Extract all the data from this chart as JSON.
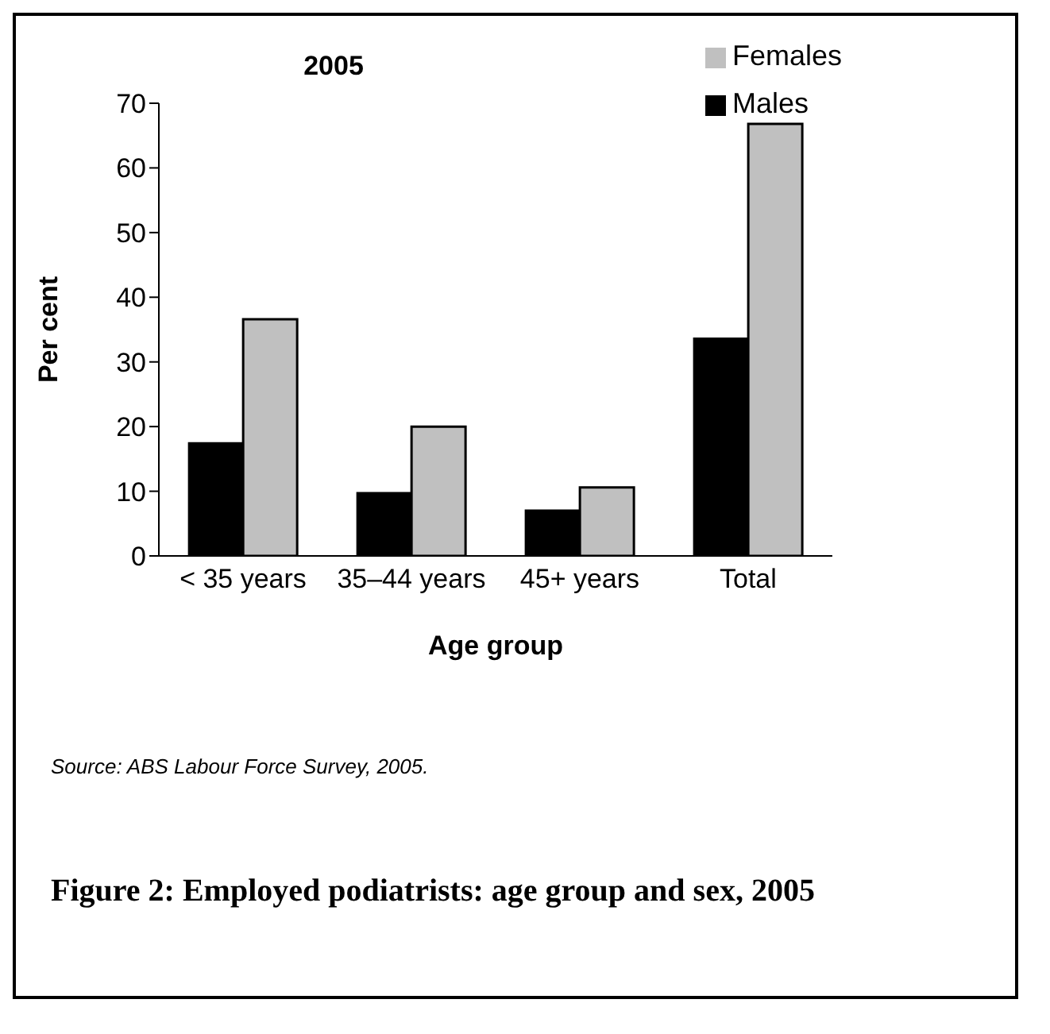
{
  "chart_data": {
    "type": "bar",
    "title": "2005",
    "xlabel": "Age group",
    "ylabel": "Per cent",
    "categories": [
      "< 35 years",
      "35–44 years",
      "45+ years",
      "Total"
    ],
    "series": [
      {
        "name": "Males",
        "color": "#000000",
        "values": [
          17.4,
          9.7,
          7.0,
          33.6
        ]
      },
      {
        "name": "Females",
        "color": "#c0c0c0",
        "values": [
          36.6,
          20.0,
          10.6,
          66.8
        ]
      }
    ],
    "ylim": [
      0,
      70
    ],
    "yticks": [
      0,
      10,
      20,
      30,
      40,
      50,
      60,
      70
    ],
    "grid": false,
    "legend": "top right",
    "annotations": [
      "Source: ABS Labour Force Survey, 2005.",
      "Figure 2:  Employed podiatrists: age group and sex, 2005"
    ]
  }
}
